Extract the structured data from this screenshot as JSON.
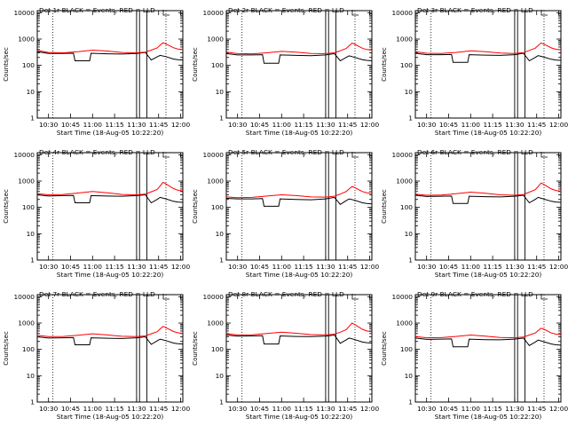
{
  "chart_data": {
    "type": "line",
    "x_tick_labels": [
      "10:30",
      "10:45",
      "11:00",
      "11:15",
      "11:30",
      "11:45",
      "12:00"
    ],
    "x_ticks_minutes": [
      30,
      45,
      60,
      75,
      90,
      105,
      120
    ],
    "xlim_minutes": [
      22.33,
      121.5
    ],
    "xlabel": "Start Time (18-Aug-05 10:22:20)",
    "ylabel": "Counts/sec",
    "y_scale": "log",
    "ylim": [
      1,
      12000
    ],
    "y_tick_labels": [
      "1",
      "10",
      "100",
      "1000",
      "10000"
    ],
    "y_ticks": [
      1,
      10,
      100,
      1000,
      10000
    ],
    "colors": {
      "events": "#000000",
      "lld": "#ff0000"
    },
    "panels": [
      {
        "title": "Det 1r BLACK = Events, RED = LLD",
        "markers_minutes": {
          "dotted": [
            33,
            110
          ],
          "solid": [
            90,
            92,
            97
          ]
        },
        "series": [
          {
            "key": "events",
            "color": "#000000",
            "x": [
              22.33,
              30,
              40,
              47,
              48,
              58,
              59,
              70,
              80,
              90,
              96,
              100,
              104,
              106,
              110,
              115,
              118,
              121.5
            ],
            "y": [
              330,
              285,
              285,
              290,
              150,
              150,
              290,
              275,
              270,
              285,
              310,
              160,
              210,
              240,
              215,
              175,
              165,
              160
            ]
          },
          {
            "key": "lld",
            "color": "#ff0000",
            "x": [
              22.33,
              30,
              40,
              50,
              60,
              70,
              80,
              90,
              96,
              100,
              104,
              106,
              108,
              110,
              115,
              118,
              121.5
            ],
            "y": [
              370,
              310,
              300,
              330,
              380,
              350,
              310,
              300,
              320,
              380,
              460,
              580,
              720,
              650,
              470,
              420,
              400
            ]
          }
        ]
      },
      {
        "title": "Det 2r BLACK = Events, RED = LLD",
        "markers_minutes": {
          "dotted": [
            33,
            110
          ],
          "solid": [
            90,
            92,
            97
          ]
        },
        "series": [
          {
            "key": "events",
            "color": "#000000",
            "x": [
              22.33,
              30,
              40,
              47,
              48,
              58,
              59,
              70,
              80,
              90,
              96,
              100,
              104,
              106,
              110,
              115,
              118,
              121.5
            ],
            "y": [
              280,
              250,
              250,
              255,
              120,
              120,
              250,
              240,
              235,
              250,
              280,
              150,
              200,
              230,
              200,
              165,
              155,
              150
            ]
          },
          {
            "key": "lld",
            "color": "#ff0000",
            "x": [
              22.33,
              30,
              40,
              50,
              60,
              70,
              80,
              90,
              96,
              100,
              104,
              106,
              108,
              110,
              115,
              118,
              121.5
            ],
            "y": [
              320,
              280,
              275,
              300,
              340,
              320,
              285,
              280,
              300,
              360,
              440,
              560,
              700,
              630,
              450,
              400,
              380
            ]
          }
        ]
      },
      {
        "title": "Det 3r BLACK = Events, RED = LLD",
        "markers_minutes": {
          "dotted": [
            33,
            110
          ],
          "solid": [
            90,
            92,
            97
          ]
        },
        "series": [
          {
            "key": "events",
            "color": "#000000",
            "x": [
              22.33,
              30,
              40,
              47,
              48,
              58,
              59,
              70,
              80,
              90,
              96,
              100,
              104,
              106,
              110,
              115,
              118,
              121.5
            ],
            "y": [
              290,
              255,
              255,
              260,
              130,
              130,
              255,
              245,
              240,
              255,
              290,
              150,
              200,
              235,
              205,
              170,
              160,
              155
            ]
          },
          {
            "key": "lld",
            "color": "#ff0000",
            "x": [
              22.33,
              30,
              40,
              50,
              60,
              70,
              80,
              90,
              96,
              100,
              104,
              106,
              108,
              110,
              115,
              118,
              121.5
            ],
            "y": [
              330,
              290,
              285,
              310,
              360,
              330,
              295,
              285,
              305,
              370,
              450,
              570,
              710,
              640,
              460,
              410,
              390
            ]
          }
        ]
      },
      {
        "title": "Det 4r BLACK = Events, RED = LLD",
        "markers_minutes": {
          "dotted": [
            33,
            110
          ],
          "solid": [
            90,
            92,
            97
          ]
        },
        "series": [
          {
            "key": "events",
            "color": "#000000",
            "x": [
              22.33,
              30,
              40,
              47,
              48,
              58,
              59,
              70,
              80,
              90,
              96,
              100,
              104,
              106,
              110,
              115,
              118,
              121.5
            ],
            "y": [
              300,
              270,
              280,
              285,
              150,
              150,
              280,
              270,
              265,
              280,
              300,
              150,
              200,
              240,
              210,
              170,
              160,
              155
            ]
          },
          {
            "key": "lld",
            "color": "#ff0000",
            "x": [
              22.33,
              30,
              40,
              50,
              60,
              70,
              80,
              90,
              96,
              100,
              104,
              106,
              108,
              110,
              115,
              118,
              121.5
            ],
            "y": [
              330,
              300,
              310,
              350,
              400,
              360,
              310,
              300,
              320,
              390,
              480,
              650,
              900,
              780,
              520,
              450,
              420
            ]
          }
        ]
      },
      {
        "title": "Det 5r BLACK = Events, RED = LLD",
        "markers_minutes": {
          "dotted": [
            33,
            110
          ],
          "solid": [
            90,
            92,
            97
          ]
        },
        "series": [
          {
            "key": "events",
            "color": "#000000",
            "x": [
              22.33,
              30,
              40,
              47,
              48,
              58,
              59,
              70,
              80,
              90,
              96,
              100,
              104,
              106,
              110,
              115,
              118,
              121.5
            ],
            "y": [
              220,
              210,
              210,
              215,
              110,
              110,
              210,
              200,
              195,
              210,
              240,
              130,
              180,
              210,
              185,
              150,
              140,
              135
            ]
          },
          {
            "key": "lld",
            "color": "#ff0000",
            "x": [
              22.33,
              30,
              40,
              50,
              60,
              70,
              80,
              90,
              96,
              100,
              104,
              106,
              108,
              110,
              115,
              118,
              121.5
            ],
            "y": [
              250,
              235,
              240,
              270,
              300,
              280,
              250,
              245,
              265,
              320,
              400,
              500,
              620,
              560,
              400,
              360,
              340
            ]
          }
        ]
      },
      {
        "title": "Det 6r BLACK = Events, RED = LLD",
        "markers_minutes": {
          "dotted": [
            33,
            110
          ],
          "solid": [
            90,
            92,
            97
          ]
        },
        "series": [
          {
            "key": "events",
            "color": "#000000",
            "x": [
              22.33,
              30,
              40,
              47,
              48,
              58,
              59,
              70,
              80,
              90,
              96,
              100,
              104,
              106,
              110,
              115,
              118,
              121.5
            ],
            "y": [
              290,
              260,
              265,
              270,
              140,
              140,
              265,
              255,
              250,
              265,
              290,
              150,
              200,
              240,
              205,
              170,
              160,
              155
            ]
          },
          {
            "key": "lld",
            "color": "#ff0000",
            "x": [
              22.33,
              30,
              40,
              50,
              60,
              70,
              80,
              90,
              96,
              100,
              104,
              106,
              108,
              110,
              115,
              118,
              121.5
            ],
            "y": [
              320,
              290,
              295,
              330,
              380,
              345,
              300,
              290,
              310,
              380,
              470,
              620,
              850,
              740,
              500,
              440,
              410
            ]
          }
        ]
      },
      {
        "title": "Det 7r BLACK = Events, RED = LLD",
        "markers_minutes": {
          "dotted": [
            33,
            110
          ],
          "solid": [
            90,
            92,
            97
          ]
        },
        "series": [
          {
            "key": "events",
            "color": "#000000",
            "x": [
              22.33,
              30,
              40,
              47,
              48,
              58,
              59,
              70,
              80,
              90,
              96,
              100,
              104,
              106,
              110,
              115,
              118,
              121.5
            ],
            "y": [
              300,
              270,
              275,
              280,
              150,
              150,
              275,
              265,
              260,
              275,
              300,
              155,
              210,
              245,
              215,
              175,
              165,
              160
            ]
          },
          {
            "key": "lld",
            "color": "#ff0000",
            "x": [
              22.33,
              30,
              40,
              50,
              60,
              70,
              80,
              90,
              96,
              100,
              104,
              106,
              108,
              110,
              115,
              118,
              121.5
            ],
            "y": [
              340,
              305,
              310,
              345,
              390,
              355,
              315,
              305,
              325,
              390,
              470,
              600,
              750,
              670,
              480,
              430,
              400
            ]
          }
        ]
      },
      {
        "title": "Det 8r BLACK = Events, RED = LLD",
        "markers_minutes": {
          "dotted": [
            33,
            110
          ],
          "solid": [
            90,
            92,
            97
          ]
        },
        "series": [
          {
            "key": "events",
            "color": "#000000",
            "x": [
              22.33,
              30,
              40,
              47,
              48,
              58,
              59,
              70,
              80,
              90,
              96,
              100,
              104,
              106,
              110,
              115,
              118,
              121.5
            ],
            "y": [
              350,
              320,
              325,
              330,
              160,
              160,
              325,
              310,
              305,
              320,
              350,
              170,
              230,
              270,
              235,
              190,
              180,
              175
            ]
          },
          {
            "key": "lld",
            "color": "#ff0000",
            "x": [
              22.33,
              30,
              40,
              50,
              60,
              70,
              80,
              90,
              96,
              100,
              104,
              106,
              108,
              110,
              115,
              118,
              121.5
            ],
            "y": [
              390,
              355,
              360,
              400,
              450,
              410,
              365,
              355,
              380,
              450,
              560,
              750,
              1000,
              870,
              580,
              500,
              470
            ]
          }
        ]
      },
      {
        "title": "Det 9r BLACK = Events, RED = LLD",
        "markers_minutes": {
          "dotted": [
            33,
            110
          ],
          "solid": [
            90,
            92,
            97
          ]
        },
        "series": [
          {
            "key": "events",
            "color": "#000000",
            "x": [
              22.33,
              30,
              40,
              47,
              48,
              58,
              59,
              70,
              80,
              90,
              96,
              100,
              104,
              106,
              110,
              115,
              118,
              121.5
            ],
            "y": [
              270,
              240,
              245,
              250,
              125,
              125,
              245,
              235,
              230,
              245,
              270,
              140,
              190,
              225,
              195,
              160,
              150,
              145
            ]
          },
          {
            "key": "lld",
            "color": "#ff0000",
            "x": [
              22.33,
              30,
              40,
              50,
              60,
              70,
              80,
              90,
              96,
              100,
              104,
              106,
              108,
              110,
              115,
              118,
              121.5
            ],
            "y": [
              310,
              275,
              280,
              310,
              350,
              320,
              285,
              275,
              295,
              350,
              420,
              520,
              640,
              580,
              420,
              380,
              360
            ]
          }
        ]
      }
    ]
  }
}
